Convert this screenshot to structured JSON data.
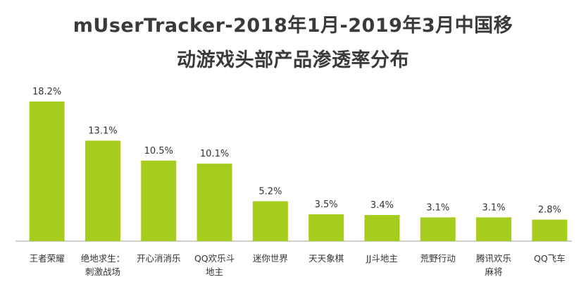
{
  "title": {
    "line1": "mUserTracker-2018年1月-2019年3月中国移",
    "line2": "动游戏头部产品渗透率分布"
  },
  "colors": {
    "bar": "#a6cc1e",
    "axis": "#bfbfbf",
    "text": "#333333"
  },
  "chart_data": {
    "type": "bar",
    "title": "mUserTracker-2018年1月-2019年3月中国移动游戏头部产品渗透率分布",
    "categories": [
      "王者荣耀",
      "绝地求生：刺激战场",
      "开心消消乐",
      "QQ欢乐斗地主",
      "迷你世界",
      "天天象棋",
      "JJ斗地主",
      "荒野行动",
      "腾讯欢乐麻将",
      "QQ飞车"
    ],
    "category_lines": [
      [
        "王者荣耀"
      ],
      [
        "绝地求生：",
        "刺激战场"
      ],
      [
        "开心消消乐"
      ],
      [
        "QQ欢乐斗",
        "地主"
      ],
      [
        "迷你世界"
      ],
      [
        "天天象棋"
      ],
      [
        "JJ斗地主"
      ],
      [
        "荒野行动"
      ],
      [
        "腾讯欢乐",
        "麻将"
      ],
      [
        "QQ飞车"
      ]
    ],
    "values": [
      18.2,
      13.1,
      10.5,
      10.1,
      5.2,
      3.5,
      3.4,
      3.1,
      3.1,
      2.8
    ],
    "value_labels": [
      "18.2%",
      "13.1%",
      "10.5%",
      "10.1%",
      "5.2%",
      "3.5%",
      "3.4%",
      "3.1%",
      "3.1%",
      "2.8%"
    ],
    "xlabel": "",
    "ylabel": "",
    "ylim": [
      0,
      18.2
    ],
    "grid": false
  }
}
